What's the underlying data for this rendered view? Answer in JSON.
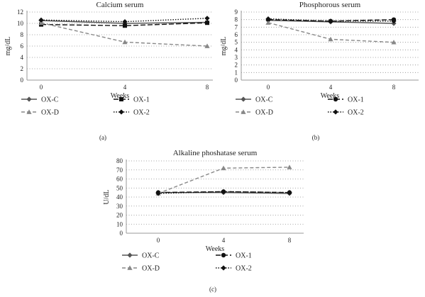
{
  "chart_data": [
    {
      "type": "line",
      "panel_label": "(a)",
      "title": "Calcium serum",
      "xlabel": "Weeks",
      "ylabel": "mg/dL",
      "categories": [
        "0",
        "4",
        "8"
      ],
      "ylim": [
        0,
        12
      ],
      "yticks": [
        "0",
        "2",
        "4",
        "6",
        "8",
        "10",
        "12"
      ],
      "grid": "horizontal-dotted",
      "legend_position": "bottom",
      "series": [
        {
          "name": "OX-C",
          "values": [
            10.5,
            10.0,
            10.2
          ]
        },
        {
          "name": "OX-1",
          "values": [
            9.8,
            9.6,
            10.1
          ]
        },
        {
          "name": "OX-D",
          "values": [
            10.1,
            6.7,
            6.0
          ]
        },
        {
          "name": "OX-2",
          "values": [
            10.6,
            10.3,
            10.9
          ]
        }
      ]
    },
    {
      "type": "line",
      "panel_label": "(b)",
      "title": "Phosphorous serum",
      "xlabel": "Weeks",
      "ylabel": "mg/dL",
      "categories": [
        "0",
        "4",
        "8"
      ],
      "ylim": [
        0,
        9
      ],
      "yticks": [
        "0",
        "1",
        "2",
        "3",
        "4",
        "5",
        "6",
        "7",
        "8",
        "9"
      ],
      "grid": "horizontal-dotted",
      "legend_position": "bottom",
      "series": [
        {
          "name": "OX-C",
          "values": [
            7.9,
            7.7,
            7.5
          ]
        },
        {
          "name": "OX-1",
          "values": [
            8.0,
            7.8,
            8.0
          ]
        },
        {
          "name": "OX-D",
          "values": [
            7.6,
            5.4,
            5.0
          ]
        },
        {
          "name": "OX-2",
          "values": [
            8.1,
            7.8,
            7.8
          ]
        }
      ]
    },
    {
      "type": "line",
      "panel_label": "(c)",
      "title": "Alkaline phoshatase serum",
      "xlabel": "Weeks",
      "ylabel": "U/dL",
      "categories": [
        "0",
        "4",
        "8"
      ],
      "ylim": [
        0,
        80
      ],
      "yticks": [
        "0",
        "10",
        "20",
        "30",
        "40",
        "50",
        "60",
        "70",
        "80"
      ],
      "grid": "horizontal-dotted",
      "legend_position": "bottom",
      "series": [
        {
          "name": "OX-C",
          "values": [
            45,
            45,
            44
          ]
        },
        {
          "name": "OX-1",
          "values": [
            45,
            46,
            45
          ]
        },
        {
          "name": "OX-D",
          "values": [
            44,
            72,
            73
          ]
        },
        {
          "name": "OX-2",
          "values": [
            44,
            46,
            45
          ]
        }
      ]
    }
  ],
  "styles": {
    "axis_color": "#9a9a9a",
    "grid_color": "#8a8a8a",
    "text_color": "#222222",
    "series": {
      "OX-C": {
        "color": "#555555",
        "dash": "solid",
        "marker": "diamond"
      },
      "OX-1": {
        "color": "#111111",
        "dash": "longdash",
        "marker": "square"
      },
      "OX-D": {
        "color": "#888888",
        "dash": "dash",
        "marker": "triangle"
      },
      "OX-2": {
        "color": "#111111",
        "dash": "dot",
        "marker": "diamond"
      }
    },
    "series_c": {
      "OX-C": {
        "marker": "diamond"
      },
      "OX-1": {
        "marker": "circle"
      },
      "OX-D": {
        "marker": "triangle"
      },
      "OX-2": {
        "marker": "diamond"
      }
    },
    "series_b": {
      "OX-C": {
        "marker": "diamond"
      },
      "OX-1": {
        "marker": "circle"
      },
      "OX-D": {
        "marker": "triangle"
      },
      "OX-2": {
        "marker": "diamond"
      }
    }
  }
}
